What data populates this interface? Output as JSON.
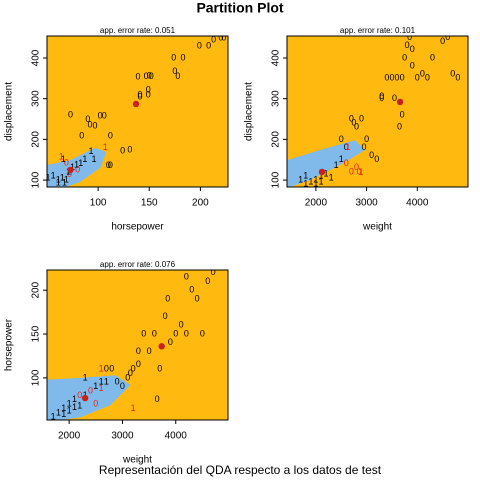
{
  "title": "Partition Plot",
  "caption": "Representación del QDA respecto a los datos de test",
  "chart_data": [
    {
      "type": "scatter",
      "subtitle": "app. error rate: 0.051",
      "x_label": "horsepower",
      "y_label": "displacement",
      "xlim": [
        50,
        227
      ],
      "ylim": [
        83,
        454
      ],
      "xticks": [
        100,
        150,
        200
      ],
      "yticks": [
        100,
        200,
        300,
        400
      ],
      "background_color": "#ffb90f",
      "region_color": "#7fbaeb",
      "centroid_color": "#c8201c",
      "series": [
        {
          "name": "0",
          "x": [
            73,
            90,
            92,
            97,
            102,
            106,
            84,
            112,
            139,
            147,
            150,
            152,
            141,
            141,
            149,
            149,
            124,
            131,
            112,
            110,
            174,
            175,
            178,
            183,
            199,
            208,
            213,
            220,
            223,
            69,
            72,
            80
          ],
          "y": [
            260,
            248,
            235,
            233,
            257,
            257,
            208,
            208,
            353,
            354,
            356,
            354,
            309,
            304,
            321,
            309,
            171,
            174,
            135,
            135,
            400,
            366,
            354,
            400,
            429,
            429,
            444,
            449,
            449,
            142,
            113,
            125
          ],
          "colors": [
            "#000000",
            "#000000",
            "#000000",
            "#000000",
            "#000000",
            "#000000",
            "#000000",
            "#000000",
            "#000000",
            "#000000",
            "#000000",
            "#000000",
            "#000000",
            "#000000",
            "#000000",
            "#000000",
            "#000000",
            "#000000",
            "#000000",
            "#000000",
            "#000000",
            "#000000",
            "#000000",
            "#000000",
            "#000000",
            "#000000",
            "#000000",
            "#000000",
            "#000000",
            "#e8231e",
            "#e8231e",
            "#e8231e"
          ]
        },
        {
          "name": "1",
          "x": [
            51,
            56,
            61,
            65,
            67,
            71,
            75,
            79,
            83,
            87,
            93,
            96,
            66,
            61,
            69,
            64,
            107
          ],
          "y": [
            105,
            110,
            100,
            105,
            93,
            120,
            130,
            137,
            140,
            150,
            170,
            150,
            150,
            93,
            100,
            157,
            180
          ],
          "colors": [
            "#000000",
            "#000000",
            "#000000",
            "#000000",
            "#000000",
            "#000000",
            "#000000",
            "#000000",
            "#000000",
            "#000000",
            "#000000",
            "#000000",
            "#000000",
            "#000000",
            "#000000",
            "#e8231e",
            "#e8231e"
          ]
        }
      ],
      "centroids": {
        "x": [
          137,
          73
        ],
        "y": [
          287,
          125
        ]
      },
      "boundary": {
        "x": [
          50,
          72.5,
          97,
          108,
          102,
          82,
          68,
          50
        ],
        "y": [
          137,
          149,
          179,
          169,
          130,
          95,
          83,
          83
        ]
      }
    },
    {
      "type": "scatter",
      "subtitle": "app. error rate: 0.101",
      "x_label": "weight",
      "y_label": "displacement",
      "xlim": [
        1430,
        5000
      ],
      "ylim": [
        83,
        454
      ],
      "xticks": [
        2000,
        3000,
        4000
      ],
      "yticks": [
        100,
        200,
        300,
        400
      ],
      "background_color": "#ffb90f",
      "region_color": "#7fbaeb",
      "centroid_color": "#c8201c",
      "series": [
        {
          "name": "0",
          "x": [
            2500,
            2700,
            2750,
            2800,
            2900,
            2600,
            3000,
            2950,
            3100,
            3200,
            3300,
            3300,
            3400,
            3500,
            3600,
            3700,
            3550,
            3700,
            3750,
            3800,
            3850,
            3900,
            4000,
            4200,
            4300,
            4500,
            4600,
            4800,
            4700,
            4100,
            3650,
            3900,
            2600,
            2800,
            2700,
            2850
          ],
          "y": [
            200,
            250,
            240,
            230,
            250,
            180,
            200,
            180,
            160,
            150,
            300,
            305,
            350,
            350,
            350,
            350,
            300,
            260,
            400,
            430,
            450,
            420,
            350,
            350,
            400,
            440,
            450,
            350,
            360,
            360,
            230,
            380,
            140,
            130,
            120,
            120
          ],
          "colors": [
            "#000000",
            "#000000",
            "#000000",
            "#000000",
            "#000000",
            "#000000",
            "#000000",
            "#000000",
            "#000000",
            "#000000",
            "#000000",
            "#000000",
            "#000000",
            "#000000",
            "#000000",
            "#000000",
            "#000000",
            "#000000",
            "#000000",
            "#000000",
            "#000000",
            "#000000",
            "#000000",
            "#000000",
            "#000000",
            "#000000",
            "#000000",
            "#000000",
            "#000000",
            "#000000",
            "#000000",
            "#000000",
            "#e8231e",
            "#e8231e",
            "#e8231e",
            "#e8231e"
          ]
        },
        {
          "name": "1",
          "x": [
            1700,
            1800,
            1900,
            2000,
            2100,
            2200,
            2300,
            2000,
            2400,
            2500,
            1800,
            2100,
            2630,
            2890
          ],
          "y": [
            100,
            110,
            95,
            100,
            110,
            115,
            105,
            90,
            135,
            150,
            90,
            95,
            180,
            118
          ],
          "colors": [
            "#000000",
            "#000000",
            "#000000",
            "#000000",
            "#000000",
            "#000000",
            "#000000",
            "#000000",
            "#000000",
            "#000000",
            "#000000",
            "#000000",
            "#e8231e",
            "#e8231e"
          ]
        }
      ],
      "centroids": {
        "x": [
          3660,
          2120
        ],
        "y": [
          292,
          120
        ]
      },
      "boundary": {
        "x": [
          1430,
          2080,
          2770,
          2970,
          2475,
          1880,
          1490,
          1430
        ],
        "y": [
          149,
          174,
          198,
          174,
          137,
          100,
          83,
          83
        ]
      }
    },
    {
      "type": "scatter",
      "subtitle": "app. error rate: 0.076",
      "x_label": "weight",
      "y_label": "horsepower",
      "xlim": [
        1585,
        4980
      ],
      "ylim": [
        52,
        223
      ],
      "xticks": [
        2000,
        3000,
        4000
      ],
      "yticks": [
        100,
        150,
        200
      ],
      "background_color": "#ffb90f",
      "region_color": "#7fbaeb",
      "centroid_color": "#c8201c",
      "series": [
        {
          "name": "0",
          "x": [
            2700,
            2800,
            3000,
            3100,
            3150,
            3200,
            3300,
            3400,
            3500,
            3600,
            3700,
            3800,
            3850,
            3900,
            4000,
            4100,
            4200,
            4300,
            4400,
            4500,
            4600,
            4700,
            4200,
            3300,
            2900,
            3650,
            2200,
            2500,
            2400
          ],
          "y": [
            110,
            110,
            90,
            100,
            105,
            110,
            130,
            150,
            130,
            150,
            110,
            170,
            190,
            140,
            150,
            160,
            150,
            200,
            190,
            150,
            210,
            220,
            215,
            115,
            95,
            75,
            80,
            70,
            85
          ],
          "colors": [
            "#000000",
            "#000000",
            "#000000",
            "#000000",
            "#000000",
            "#000000",
            "#000000",
            "#000000",
            "#000000",
            "#000000",
            "#000000",
            "#000000",
            "#000000",
            "#000000",
            "#000000",
            "#000000",
            "#000000",
            "#000000",
            "#000000",
            "#000000",
            "#000000",
            "#000000",
            "#000000",
            "#000000",
            "#000000",
            "#000000",
            "#e8231e",
            "#e8231e",
            "#e8231e"
          ]
        },
        {
          "name": "1",
          "x": [
            1700,
            1800,
            1900,
            2000,
            2100,
            2200,
            2300,
            2000,
            1900,
            2100,
            2300,
            2500,
            2600,
            2700,
            2600,
            3200,
            2600
          ],
          "y": [
            55,
            60,
            65,
            70,
            75,
            68,
            80,
            62,
            58,
            66,
            100,
            90,
            95,
            95,
            110,
            65,
            88
          ],
          "colors": [
            "#000000",
            "#000000",
            "#000000",
            "#000000",
            "#000000",
            "#000000",
            "#000000",
            "#000000",
            "#000000",
            "#000000",
            "#000000",
            "#000000",
            "#000000",
            "#000000",
            "#e8231e",
            "#e8231e",
            "#e8231e"
          ]
        }
      ],
      "centroids": {
        "x": [
          3736,
          2300
        ],
        "y": [
          136,
          77
        ]
      },
      "boundary": {
        "x": [
          1585,
          2208,
          2868,
          3150,
          2774,
          2208,
          1830,
          1585
        ],
        "y": [
          98,
          100,
          103,
          92,
          69,
          55,
          52,
          52
        ]
      }
    }
  ]
}
